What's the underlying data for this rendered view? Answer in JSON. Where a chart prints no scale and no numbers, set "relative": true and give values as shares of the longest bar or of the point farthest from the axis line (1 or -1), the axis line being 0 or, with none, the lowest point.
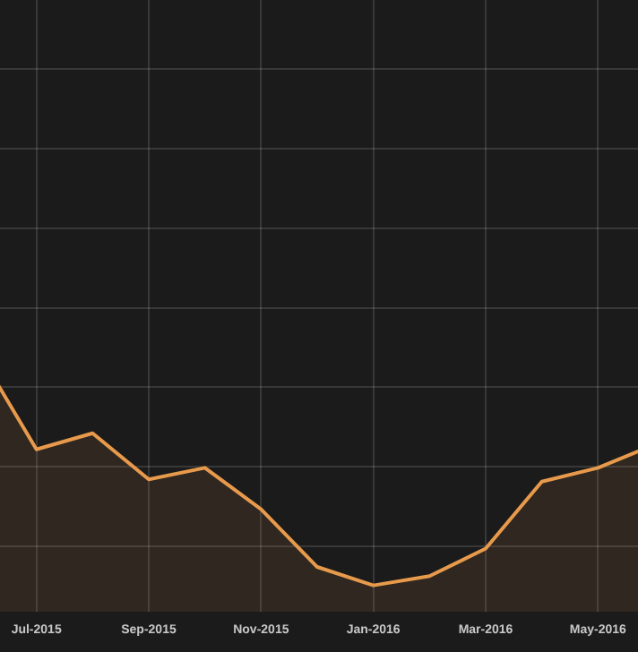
{
  "chart_data": {
    "type": "area",
    "relative": true,
    "categories": [
      null,
      "Jul-2015",
      null,
      "Sep-2015",
      null,
      "Nov-2015",
      null,
      "Jan-2016",
      null,
      "Mar-2016",
      null,
      "May-2016",
      null
    ],
    "series": [
      {
        "color": "#e89a4c",
        "values": [
          1,
          0.59,
          0.66,
          0.46,
          0.51,
          0.33,
          0.08,
          0,
          0.04,
          0.16,
          0.45,
          0.51,
          0.61
        ]
      }
    ],
    "grid": true
  }
}
